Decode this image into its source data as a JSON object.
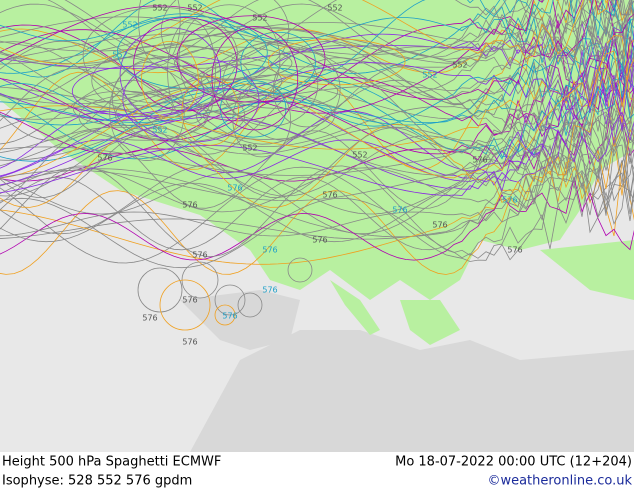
{
  "footer": {
    "title": "Height 500 hPa Spaghetti  ECMWF",
    "datetime": "Mo 18-07-2022 00:00 UTC (12+204)",
    "isophyse": "Isophyse: 528 552 576 gpdm",
    "credit": "©weatheronline.co.uk"
  },
  "map": {
    "contour_labels": [
      "552",
      "552",
      "552",
      "552",
      "552",
      "552",
      "552",
      "552",
      "552",
      "552",
      "552",
      "576",
      "576",
      "576",
      "576",
      "576",
      "576",
      "576",
      "576",
      "576",
      "576",
      "576",
      "576",
      "576",
      "576",
      "576",
      "576",
      "576"
    ]
  }
}
